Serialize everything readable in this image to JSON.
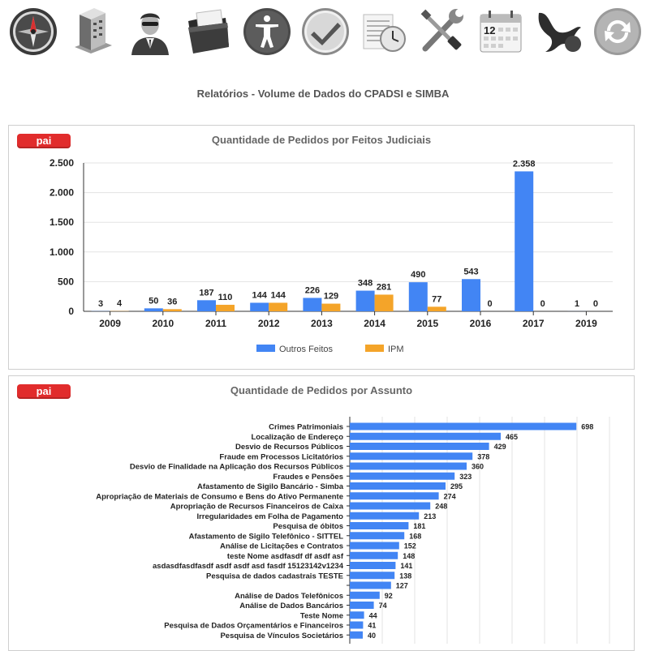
{
  "toolbar": {
    "icons": [
      {
        "name": "compass-icon"
      },
      {
        "name": "building-icon"
      },
      {
        "name": "agent-icon"
      },
      {
        "name": "folder-icon"
      },
      {
        "name": "accessibility-icon"
      },
      {
        "name": "checkmark-icon"
      },
      {
        "name": "clock-document-icon"
      },
      {
        "name": "tools-icon"
      },
      {
        "name": "calendar-icon",
        "label": "12"
      },
      {
        "name": "network-icon"
      },
      {
        "name": "refresh-icon"
      }
    ]
  },
  "page": {
    "title": "Relatórios - Volume de Dados do CPADSI e SIMBA"
  },
  "panels": [
    {
      "badge": "pai",
      "title": "Quantidade de Pedidos por Feitos Judiciais"
    },
    {
      "badge": "pai",
      "title": "Quantidade de Pedidos por Assunto"
    }
  ],
  "colors": {
    "series1": "#4285f4",
    "series2": "#f4a429",
    "badge": "#e12c2c"
  },
  "chart_data": [
    {
      "type": "bar",
      "title": "Quantidade de Pedidos por Feitos Judiciais",
      "categories": [
        "2009",
        "2010",
        "2011",
        "2012",
        "2013",
        "2014",
        "2015",
        "2016",
        "2017",
        "2019"
      ],
      "series": [
        {
          "name": "Outros Feitos",
          "values": [
            3,
            50,
            187,
            144,
            226,
            348,
            490,
            543,
            2358,
            1
          ]
        },
        {
          "name": "IPM",
          "values": [
            4,
            36,
            110,
            144,
            129,
            281,
            77,
            0,
            0,
            0
          ]
        }
      ],
      "value_labels": {
        "Outros Feitos": [
          "3",
          "50",
          "187",
          "144",
          "226",
          "348",
          "490",
          "543",
          "2.358",
          "1"
        ],
        "IPM": [
          "4",
          "36",
          "110",
          "144",
          "129",
          "281",
          "77",
          "0",
          "0",
          "0"
        ]
      },
      "yticks": [
        {
          "value": 0,
          "label": "0"
        },
        {
          "value": 500,
          "label": "500"
        },
        {
          "value": 1000,
          "label": "1.000"
        },
        {
          "value": 1500,
          "label": "1.500"
        },
        {
          "value": 2000,
          "label": "2.000"
        },
        {
          "value": 2500,
          "label": "2.500"
        }
      ],
      "ylim": [
        0,
        2500
      ],
      "grid": true,
      "legend": "bottom"
    },
    {
      "type": "bar",
      "orientation": "horizontal",
      "title": "Quantidade de Pedidos por Assunto",
      "categories": [
        "Crimes Patrimoniais",
        "Localização de Endereço",
        "Desvio de Recursos Públicos",
        "Fraude em Processos Licitatórios",
        "Desvio de Finalidade na Aplicação dos Recursos Públicos",
        "Fraudes e Pensões",
        "Afastamento de Sigilo Bancário - Simba",
        "Apropriação de Materiais de Consumo e Bens do Ativo Permanente",
        "Apropriação de Recursos Financeiros de Caixa",
        "Irregularidades em Folha de Pagamento",
        "Pesquisa de óbitos",
        "Afastamento de Sigilo Telefônico - SITTEL",
        "Análise de Licitações e Contratos",
        "teste Nome asdfasdf df asdf asf",
        "asdasdfasdfasdf asdf asdf asd fasdf 15123142v1234",
        "Pesquisa de dados cadastrais TESTE",
        "",
        "Análise de Dados Telefônicos",
        "Análise de Dados Bancários",
        "Teste Nome",
        "Pesquisa de Dados Orçamentários e Financeiros",
        "Pesquisa de Vínculos Societários"
      ],
      "values": [
        698,
        465,
        429,
        378,
        360,
        323,
        295,
        274,
        248,
        213,
        181,
        168,
        152,
        148,
        141,
        138,
        127,
        92,
        74,
        44,
        41,
        40
      ],
      "xlim": [
        0,
        800
      ],
      "grid": true
    }
  ]
}
